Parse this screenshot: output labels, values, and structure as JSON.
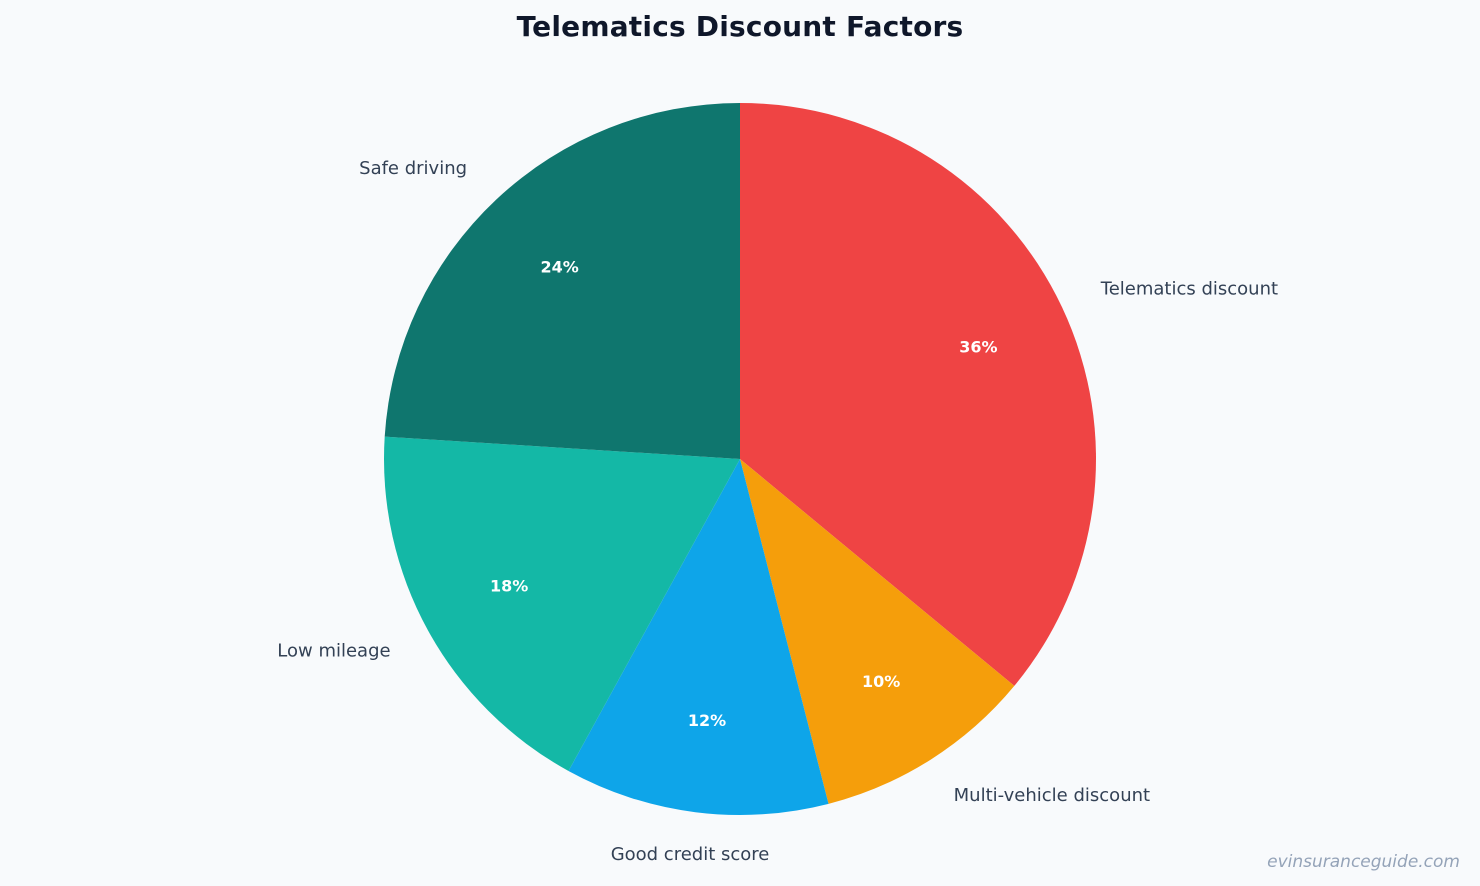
{
  "chart_data": {
    "type": "pie",
    "title": "Telematics Discount Factors",
    "slices": [
      {
        "label": "Telematics discount",
        "value": 36,
        "pct_label": "36%",
        "color": "#ef4444"
      },
      {
        "label": "Multi-vehicle discount",
        "value": 10,
        "pct_label": "10%",
        "color": "#f59e0b"
      },
      {
        "label": "Good credit score",
        "value": 12,
        "pct_label": "12%",
        "color": "#0ea5e9"
      },
      {
        "label": "Low mileage",
        "value": 18,
        "pct_label": "18%",
        "color": "#14b8a6"
      },
      {
        "label": "Safe driving",
        "value": 24,
        "pct_label": "24%",
        "color": "#0f766e"
      }
    ],
    "start_angle": "top",
    "direction": "clockwise",
    "legend": "none"
  },
  "watermark": "evinsuranceguide.com",
  "background_color": "#f8fafc"
}
